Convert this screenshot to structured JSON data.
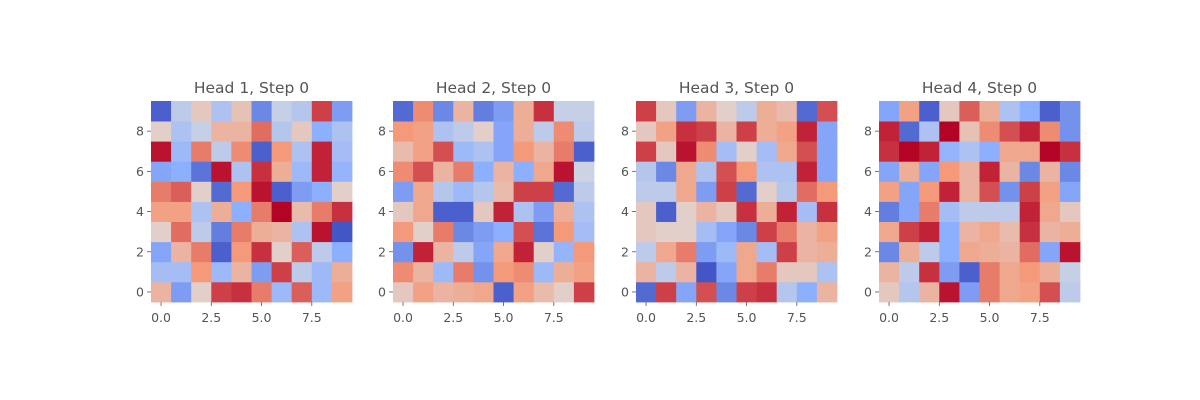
{
  "chart_data": [
    {
      "type": "heatmap",
      "title": "Head 1, Step 0",
      "colormap": "coolwarm",
      "value_range": [
        -1,
        1
      ],
      "x_tick_labels": [
        "0.0",
        "2.5",
        "5.0",
        "7.5"
      ],
      "y_tick_labels": [
        "0",
        "2",
        "4",
        "6",
        "8"
      ],
      "xlim": [
        -0.5,
        9.5
      ],
      "ylim": [
        9.5,
        -0.5
      ],
      "grid": false,
      "values": [
        [
          0.3,
          -0.6,
          0.1,
          0.8,
          0.85,
          0.6,
          -0.4,
          0.7,
          -0.4,
          0.45
        ],
        [
          -0.35,
          -0.35,
          0.5,
          -0.4,
          0.3,
          -0.6,
          0.8,
          -0.2,
          -0.4,
          0.35
        ],
        [
          -0.55,
          0.3,
          0.6,
          -0.9,
          0.5,
          0.85,
          0.1,
          0.7,
          -0.2,
          -0.5
        ],
        [
          0.1,
          0.65,
          -0.2,
          -0.75,
          0.6,
          0.35,
          0.3,
          -0.3,
          0.95,
          -0.95
        ],
        [
          0.45,
          0.45,
          -0.3,
          0.35,
          -0.5,
          0.6,
          1.0,
          0.25,
          0.6,
          0.85
        ],
        [
          0.6,
          0.7,
          0.1,
          -0.85,
          0.5,
          0.95,
          -0.9,
          -0.6,
          -0.5,
          0.1
        ],
        [
          -0.55,
          -0.5,
          -0.8,
          0.95,
          -0.3,
          0.85,
          0.35,
          -0.4,
          0.9,
          -0.45
        ],
        [
          0.95,
          -0.4,
          0.6,
          -0.2,
          0.55,
          -0.9,
          0.5,
          -0.3,
          0.9,
          -0.35
        ],
        [
          0.1,
          -0.3,
          -0.15,
          0.3,
          0.3,
          0.65,
          -0.25,
          0.15,
          -0.5,
          -0.3
        ],
        [
          -0.9,
          -0.2,
          0.15,
          -0.3,
          0.2,
          -0.7,
          -0.15,
          -0.25,
          0.8,
          -0.6
        ]
      ]
    },
    {
      "type": "heatmap",
      "title": "Head 2, Step 0",
      "colormap": "coolwarm",
      "value_range": [
        -1,
        1
      ],
      "x_tick_labels": [
        "0.0",
        "2.5",
        "5.0",
        "7.5"
      ],
      "y_tick_labels": [
        "0",
        "2",
        "4",
        "6",
        "8"
      ],
      "xlim": [
        -0.5,
        9.5
      ],
      "ylim": [
        9.5,
        -0.5
      ],
      "grid": false,
      "values": [
        [
          0.15,
          0.45,
          0.3,
          0.35,
          0.4,
          -0.9,
          0.45,
          0.25,
          0.1,
          0.8
        ],
        [
          0.55,
          0.3,
          -0.4,
          0.6,
          -0.65,
          0.5,
          0.55,
          -0.4,
          0.35,
          0.45
        ],
        [
          -0.65,
          0.9,
          0.3,
          -0.2,
          -0.55,
          0.4,
          0.9,
          0.1,
          -0.45,
          0.5
        ],
        [
          0.5,
          0.1,
          0.6,
          -0.7,
          -0.6,
          -0.5,
          0.75,
          -0.8,
          0.5,
          -0.35
        ],
        [
          0.15,
          0.4,
          -0.9,
          -0.9,
          0.15,
          0.9,
          -0.3,
          -0.6,
          0.35,
          -0.3
        ],
        [
          -0.6,
          0.4,
          -0.25,
          -0.4,
          -0.25,
          0.25,
          0.8,
          0.8,
          -0.85,
          -0.2
        ],
        [
          0.55,
          0.75,
          0.3,
          0.6,
          -0.5,
          0.3,
          -0.5,
          0.4,
          0.95,
          -0.1
        ],
        [
          0.25,
          0.45,
          0.75,
          -0.4,
          -0.3,
          -0.55,
          0.5,
          0.3,
          0.6,
          -0.9
        ],
        [
          0.5,
          0.45,
          -0.3,
          -0.2,
          0.1,
          -0.55,
          0.35,
          -0.2,
          0.55,
          -0.2
        ],
        [
          -0.85,
          0.55,
          -0.7,
          0.3,
          -0.75,
          -0.6,
          0.35,
          0.85,
          -0.15,
          -0.15
        ]
      ]
    },
    {
      "type": "heatmap",
      "title": "Head 3, Step 0",
      "colormap": "coolwarm",
      "value_range": [
        -1,
        1
      ],
      "x_tick_labels": [
        "0.0",
        "2.5",
        "5.0",
        "7.5"
      ],
      "y_tick_labels": [
        "0",
        "2",
        "4",
        "6",
        "8"
      ],
      "xlim": [
        -0.5,
        9.5
      ],
      "ylim": [
        9.5,
        -0.5
      ],
      "grid": false,
      "values": [
        [
          -0.85,
          0.8,
          -0.55,
          0.75,
          -0.7,
          0.8,
          0.85,
          -0.25,
          -0.5,
          0.3
        ],
        [
          0.3,
          -0.2,
          0.3,
          -0.95,
          -0.55,
          0.4,
          0.6,
          0.15,
          0.15,
          -0.3
        ],
        [
          -0.2,
          0.4,
          0.6,
          -0.6,
          -0.4,
          0.4,
          -0.35,
          0.8,
          0.3,
          0.35
        ],
        [
          0.15,
          0.1,
          0.1,
          -0.35,
          -0.55,
          -0.7,
          0.8,
          0.6,
          0.3,
          0.45
        ],
        [
          0.15,
          -0.9,
          0.1,
          0.3,
          0.15,
          0.85,
          0.35,
          0.9,
          -0.35,
          0.85
        ],
        [
          -0.2,
          -0.2,
          0.4,
          -0.6,
          0.8,
          -0.85,
          0.1,
          -0.25,
          0.65,
          0.5
        ],
        [
          -0.25,
          -0.7,
          0.4,
          -0.3,
          0.75,
          0.5,
          -0.3,
          -0.3,
          0.9,
          -0.55
        ],
        [
          0.8,
          0.15,
          0.95,
          0.55,
          -0.35,
          0.1,
          -0.35,
          0.4,
          0.75,
          -0.55
        ],
        [
          0.15,
          0.45,
          0.85,
          0.8,
          0.3,
          0.8,
          0.35,
          0.45,
          0.9,
          -0.55
        ],
        [
          0.8,
          0.15,
          -0.6,
          0.3,
          0.1,
          -0.2,
          0.35,
          0.25,
          -0.85,
          0.75
        ]
      ]
    },
    {
      "type": "heatmap",
      "title": "Head 4, Step 0",
      "colormap": "coolwarm",
      "value_range": [
        -1,
        1
      ],
      "x_tick_labels": [
        "0.0",
        "2.5",
        "5.0",
        "7.5"
      ],
      "y_tick_labels": [
        "0",
        "2",
        "4",
        "6",
        "8"
      ],
      "xlim": [
        -0.5,
        9.5
      ],
      "ylim": [
        9.5,
        -0.5
      ],
      "grid": false,
      "values": [
        [
          0.15,
          -0.25,
          0.3,
          0.95,
          -0.6,
          0.6,
          0.4,
          0.45,
          0.75,
          -0.2
        ],
        [
          0.3,
          -0.2,
          0.85,
          -0.6,
          -0.9,
          0.6,
          0.4,
          0.5,
          0.35,
          -0.15
        ],
        [
          -0.7,
          0.35,
          -0.2,
          -0.5,
          0.4,
          0.35,
          0.3,
          0.65,
          -0.55,
          0.95
        ],
        [
          0.4,
          0.8,
          0.9,
          -0.5,
          0.3,
          0.4,
          0.25,
          0.85,
          0.3,
          0.35
        ],
        [
          -0.75,
          -0.55,
          0.6,
          -0.35,
          -0.2,
          -0.2,
          -0.2,
          0.9,
          0.4,
          0.15
        ],
        [
          0.45,
          -0.55,
          0.5,
          0.9,
          0.3,
          0.75,
          -0.65,
          0.8,
          0.45,
          -0.55
        ],
        [
          -0.55,
          0.35,
          -0.55,
          0.5,
          0.3,
          0.9,
          0.3,
          -0.7,
          0.3,
          -0.7
        ],
        [
          0.85,
          1.0,
          0.9,
          -0.45,
          -0.3,
          -0.5,
          0.4,
          0.4,
          1.0,
          0.85
        ],
        [
          0.9,
          -0.85,
          -0.3,
          1.0,
          0.2,
          0.55,
          0.75,
          0.9,
          0.55,
          -0.65
        ],
        [
          -0.55,
          0.45,
          -0.9,
          0.15,
          0.7,
          0.35,
          -0.3,
          -0.5,
          -0.9,
          -0.65
        ]
      ]
    }
  ]
}
